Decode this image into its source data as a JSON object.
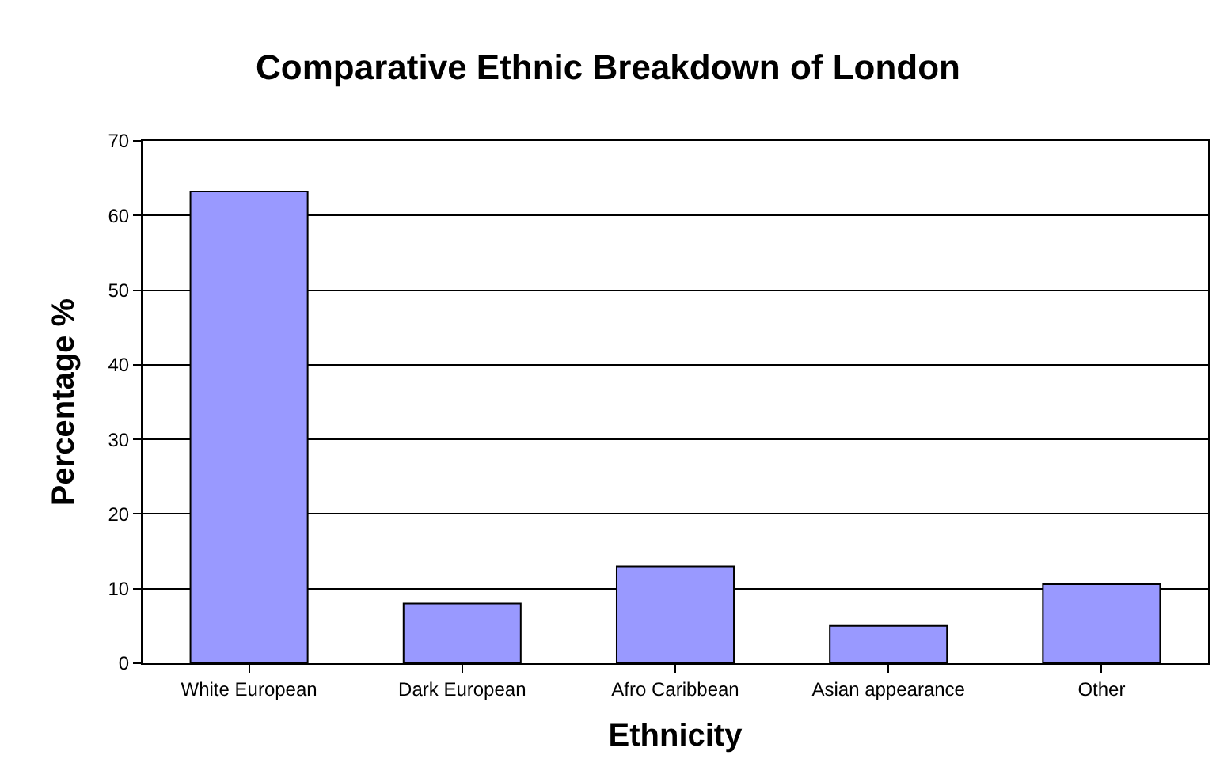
{
  "chart_data": {
    "type": "bar",
    "title": "Comparative Ethnic Breakdown of London",
    "xlabel": "Ethnicity",
    "ylabel": "Percentage %",
    "categories": [
      "White European",
      "Dark European",
      "Afro Caribbean",
      "Asian appearance",
      "Other"
    ],
    "values": [
      63.2,
      8,
      13,
      5,
      10.6
    ],
    "color": "#9999ff",
    "ylim": [
      0,
      70
    ],
    "yticks": [
      0,
      10,
      20,
      30,
      40,
      50,
      60,
      70
    ],
    "grid": "y",
    "legend": false
  }
}
